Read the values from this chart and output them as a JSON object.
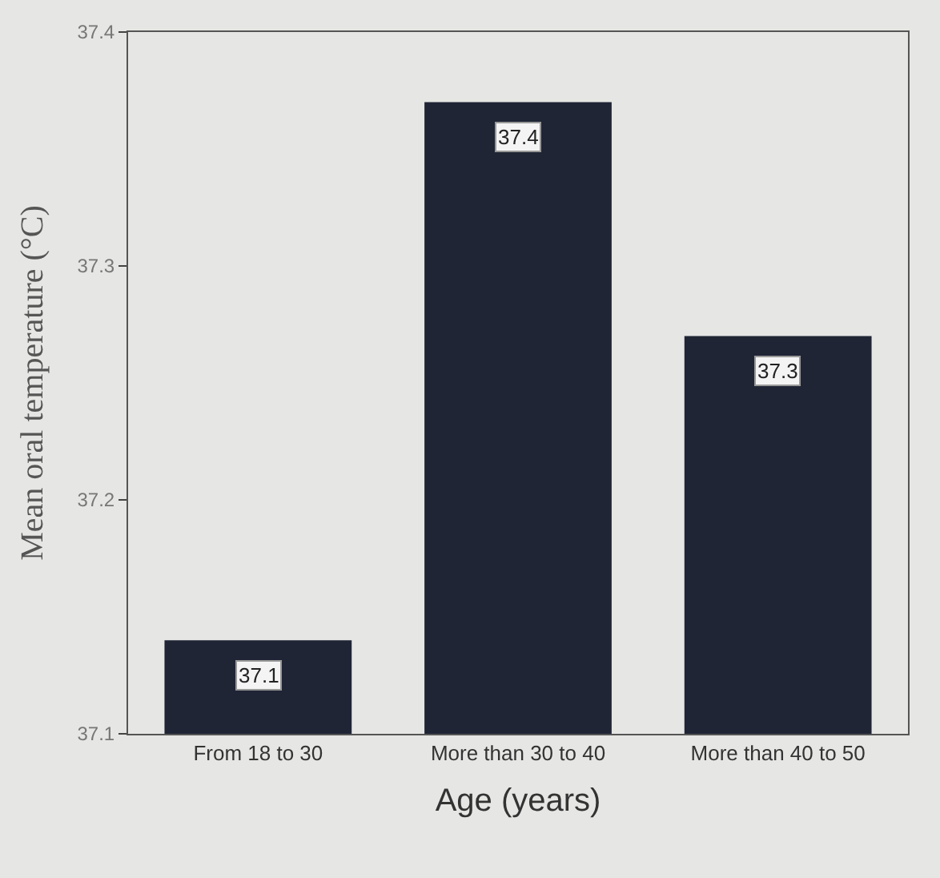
{
  "chart_data": {
    "type": "bar",
    "xlabel": "Age (years)",
    "ylabel": "Mean oral temperature (°C)",
    "categories": [
      "From 18 to 30",
      "More than 30 to 40",
      "More than 40 to 50"
    ],
    "values": [
      37.14,
      37.37,
      37.27
    ],
    "value_labels": [
      "37.1",
      "37.4",
      "37.3"
    ],
    "color": "#1f2535",
    "ylim": [
      37.1,
      37.4
    ],
    "yticks": [
      37.1,
      37.2,
      37.3,
      37.4
    ],
    "grid": false,
    "legend": false
  }
}
